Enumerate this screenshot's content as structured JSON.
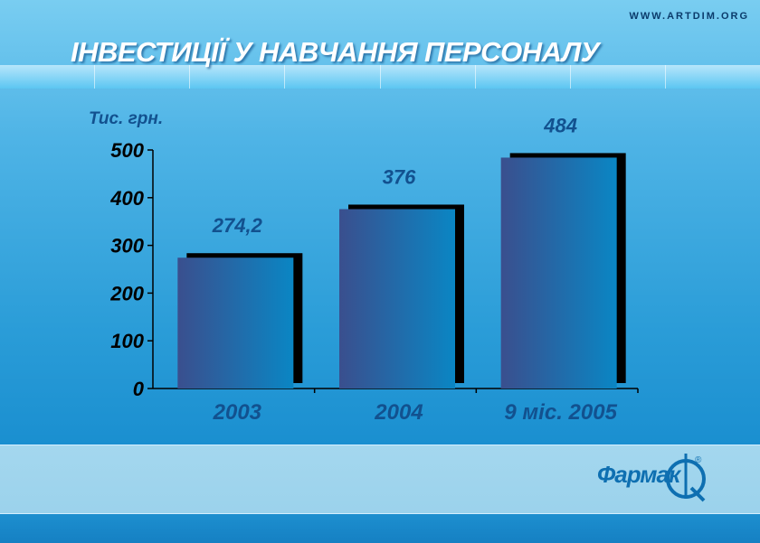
{
  "header": {
    "site": "WWW.ARTDIM.ORG",
    "title": "ІНВЕСТИЦІЇ У НАВЧАННЯ ПЕРСОНАЛУ"
  },
  "logo": {
    "text": "Фармак",
    "registered": "®"
  },
  "colors": {
    "bar_left": "#3a4f8e",
    "bar_right": "#0a86c4",
    "bar_shadow": "#000000",
    "label": "#12518f",
    "axis": "#000000"
  },
  "chart_data": {
    "type": "bar",
    "title": "",
    "ylabel": "Тис. грн.",
    "xlabel": "",
    "categories": [
      "2003",
      "2004",
      "9 міс. 2005"
    ],
    "values": [
      274.2,
      376,
      484
    ],
    "data_labels": [
      "274,2",
      "376",
      "484"
    ],
    "ylim": [
      0,
      500
    ],
    "yticks": [
      0,
      100,
      200,
      300,
      400,
      500
    ],
    "grid": false,
    "legend": "none"
  }
}
